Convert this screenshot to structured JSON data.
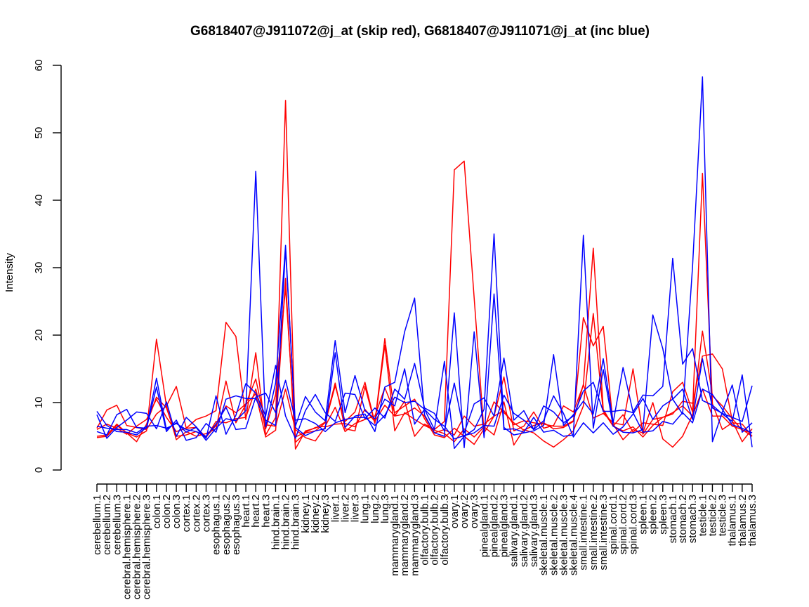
{
  "chart_data": {
    "type": "line",
    "title": "G6818407@J911072@j_at (skip red), G6818407@J911071@j_at (inc blue)",
    "xlabel": "",
    "ylabel": "Intensity",
    "ylim": [
      0,
      60
    ],
    "yticks": [
      0,
      10,
      20,
      30,
      40,
      50,
      60
    ],
    "grid": false,
    "legend": "none",
    "categories": [
      "cerebellum.1",
      "cerebellum.2",
      "cerebellum.3",
      "cerebral.hemisphere.1",
      "cerebral.hemisphere.2",
      "cerebral.hemisphere.3",
      "colon.1",
      "colon.2",
      "colon.3",
      "cortex.1",
      "cortex.2",
      "cortex.3",
      "esophagus.1",
      "esophagus.2",
      "esophagus.3",
      "heart.1",
      "heart.2",
      "heart.3",
      "hind.brain.1",
      "hind.brain.2",
      "hind.brain.3",
      "kidney.1",
      "kidney.2",
      "kidney.3",
      "liver.1",
      "liver.2",
      "liver.3",
      "lung.1",
      "lung.2",
      "lung.3",
      "mammarygland.1",
      "mammarygland.2",
      "mammarygland.3",
      "olfactory.bulb.1",
      "olfactory.bulb.2",
      "olfactory.bulb.3",
      "ovary.1",
      "ovary.2",
      "ovary.3",
      "pinealgland.1",
      "pinealgland.2",
      "pinealgland.3",
      "salivary.gland.1",
      "salivary.gland.2",
      "salivary.gland.3",
      "skeletal.muscle.1",
      "skeletal.muscle.2",
      "skeletal.muscle.3",
      "skeletal.muscle.4",
      "small.intestine.1",
      "small.intestine.2",
      "small.intestine.3",
      "spinal.cord.1",
      "spinal.cord.2",
      "spinal.cord.3",
      "spleen.1",
      "spleen.2",
      "spleen.3",
      "stomach.1",
      "stomach.2",
      "stomach.3",
      "testicle.1",
      "testicle.2",
      "testicle.3",
      "thalamus.1",
      "thalamus.2",
      "thalamus.3"
    ],
    "colors": {
      "skip": "#ff0000",
      "inc": "#0000ff"
    },
    "series": [
      {
        "color": "#ff0000",
        "values": [
          5.0,
          5.2,
          6.8,
          5.5,
          4.9,
          5.8,
          19.4,
          9.5,
          12.4,
          6.2,
          7.5,
          8.0,
          8.8,
          21.9,
          19.8,
          7.5,
          17.4,
          5.2,
          7.8,
          54.8,
          4.1,
          5.5,
          5.8,
          7.0,
          12.5,
          7.2,
          8.6,
          13.0,
          7.0,
          19.5,
          8.0,
          10.2,
          5.0,
          6.8,
          6.0,
          7.2,
          44.5,
          45.8,
          25.5,
          5.5,
          8.0,
          13.8,
          5.8,
          6.5,
          8.6,
          6.2,
          6.6,
          9.5,
          8.6,
          12.6,
          32.9,
          9.0,
          6.5,
          8.2,
          5.6,
          7.0,
          6.8,
          6.6,
          11.6,
          13.0,
          8.6,
          44.0,
          9.8,
          6.0,
          7.0,
          6.8,
          5.0
        ]
      },
      {
        "color": "#ff0000",
        "values": [
          6.2,
          8.9,
          9.6,
          6.6,
          6.3,
          6.0,
          8.3,
          9.5,
          4.5,
          5.7,
          5.0,
          5.4,
          6.1,
          13.2,
          7.0,
          9.7,
          11.3,
          4.9,
          5.9,
          28.4,
          3.1,
          5.8,
          6.2,
          7.1,
          12.9,
          6.1,
          5.8,
          12.4,
          6.9,
          18.5,
          5.8,
          8.5,
          7.5,
          6.6,
          5.9,
          5.4,
          4.2,
          6.1,
          4.9,
          6.4,
          5.2,
          10.1,
          3.7,
          6.0,
          5.5,
          4.3,
          3.4,
          4.5,
          5.8,
          9.5,
          23.2,
          8.7,
          6.5,
          5.8,
          6.4,
          4.9,
          6.6,
          7.8,
          8.3,
          10.2,
          9.9,
          16.9,
          17.2,
          15.0,
          7.3,
          4.2,
          6.1
        ]
      },
      {
        "color": "#ff0000",
        "values": [
          4.8,
          5.0,
          6.6,
          5.5,
          4.2,
          6.8,
          10.8,
          9.2,
          5.0,
          5.2,
          5.7,
          4.8,
          7.2,
          7.0,
          7.6,
          7.8,
          12.0,
          6.1,
          11.2,
          27.0,
          4.9,
          5.6,
          6.3,
          6.5,
          9.3,
          5.7,
          6.9,
          7.5,
          8.0,
          12.2,
          8.5,
          9.5,
          10.5,
          7.6,
          5.2,
          4.8,
          6.2,
          5.0,
          3.8,
          6.1,
          10.1,
          8.5,
          7.0,
          5.9,
          6.6,
          7.0,
          6.1,
          6.3,
          7.2,
          22.6,
          18.4,
          21.3,
          6.8,
          4.5,
          6.0,
          5.5,
          10.0,
          4.6,
          3.4,
          5.0,
          8.2,
          20.6,
          11.0,
          9.5,
          7.6,
          5.9,
          5.5
        ]
      },
      {
        "color": "#ff0000",
        "values": [
          6.0,
          6.8,
          6.2,
          5.3,
          6.5,
          7.5,
          10.5,
          7.8,
          5.7,
          6.2,
          6.3,
          4.9,
          6.6,
          9.5,
          8.5,
          9.8,
          13.5,
          6.7,
          6.5,
          12.0,
          6.0,
          4.8,
          4.3,
          6.4,
          6.8,
          6.9,
          6.4,
          9.0,
          7.2,
          9.6,
          8.0,
          8.3,
          9.2,
          8.0,
          5.5,
          6.0,
          5.2,
          8.0,
          6.5,
          6.8,
          8.0,
          8.8,
          6.7,
          7.3,
          7.0,
          6.8,
          6.5,
          6.5,
          7.3,
          12.7,
          7.7,
          8.4,
          7.0,
          6.7,
          15.0,
          5.3,
          7.5,
          7.8,
          8.5,
          9.5,
          8.0,
          12.0,
          8.0,
          8.0,
          6.5,
          6.0,
          5.0
        ]
      },
      {
        "color": "#0000ff",
        "values": [
          8.7,
          6.6,
          5.7,
          5.6,
          5.2,
          6.3,
          13.6,
          6.0,
          7.0,
          5.6,
          6.3,
          4.4,
          6.2,
          7.6,
          7.3,
          8.8,
          44.3,
          6.4,
          12.9,
          33.3,
          6.3,
          5.1,
          5.8,
          6.1,
          17.4,
          6.3,
          8.0,
          8.3,
          5.7,
          12.3,
          13.0,
          20.5,
          25.5,
          8.2,
          5.5,
          5.0,
          23.3,
          3.3,
          20.5,
          4.8,
          26.1,
          6.0,
          6.1,
          5.6,
          7.8,
          5.6,
          5.9,
          5.0,
          5.2,
          34.8,
          6.2,
          14.9,
          6.5,
          5.6,
          5.5,
          6.0,
          23.0,
          18.0,
          10.5,
          8.3,
          30.2,
          58.3,
          4.2,
          8.6,
          12.6,
          5.6,
          7.0
        ]
      },
      {
        "color": "#0000ff",
        "values": [
          5.7,
          5.2,
          8.2,
          9.0,
          6.3,
          6.2,
          12.3,
          5.7,
          7.4,
          4.4,
          4.8,
          6.9,
          5.6,
          10.5,
          11.0,
          10.6,
          10.6,
          7.4,
          6.6,
          32.8,
          6.5,
          10.9,
          8.6,
          7.3,
          19.2,
          8.5,
          14.0,
          8.8,
          7.6,
          10.5,
          9.5,
          15.0,
          6.8,
          9.0,
          6.0,
          16.1,
          3.2,
          5.0,
          6.0,
          9.0,
          35.0,
          6.3,
          5.2,
          5.5,
          5.8,
          6.6,
          17.1,
          6.6,
          8.2,
          10.2,
          8.3,
          16.5,
          7.0,
          15.2,
          8.6,
          11.1,
          11.0,
          12.4,
          31.4,
          15.7,
          18.0,
          10.3,
          9.6,
          8.3,
          7.2,
          14.1,
          3.4
        ]
      },
      {
        "color": "#0000ff",
        "values": [
          8.2,
          4.7,
          6.3,
          7.4,
          8.6,
          8.4,
          6.1,
          10.1,
          5.0,
          7.8,
          6.4,
          4.7,
          11.0,
          5.3,
          8.1,
          12.8,
          11.4,
          8.0,
          15.5,
          8.0,
          4.7,
          8.8,
          11.2,
          8.5,
          7.2,
          11.4,
          11.2,
          7.6,
          9.2,
          7.7,
          12.0,
          10.5,
          15.8,
          9.2,
          8.4,
          5.8,
          12.9,
          5.5,
          9.8,
          10.7,
          8.0,
          16.6,
          7.4,
          8.8,
          6.0,
          7.3,
          11.0,
          8.4,
          4.9,
          7.0,
          5.5,
          7.0,
          5.3,
          6.4,
          8.3,
          10.6,
          7.5,
          9.5,
          10.5,
          12.0,
          7.5,
          16.5,
          9.2,
          8.4,
          7.8,
          7.2,
          12.5
        ]
      },
      {
        "color": "#0000ff",
        "values": [
          6.5,
          6.2,
          6.0,
          6.0,
          5.5,
          6.5,
          6.6,
          6.2,
          6.9,
          6.0,
          5.7,
          5.0,
          6.8,
          9.3,
          6.0,
          6.2,
          10.8,
          11.4,
          8.5,
          13.3,
          7.4,
          7.6,
          6.9,
          5.7,
          7.0,
          7.5,
          7.8,
          7.8,
          6.6,
          8.1,
          10.8,
          10.0,
          10.2,
          9.0,
          7.5,
          6.5,
          4.6,
          5.1,
          5.5,
          6.6,
          6.5,
          11.1,
          8.4,
          7.4,
          6.0,
          9.5,
          8.6,
          7.0,
          8.0,
          11.7,
          13.0,
          8.7,
          8.7,
          8.9,
          8.5,
          5.6,
          5.8,
          7.2,
          6.8,
          8.5,
          7.0,
          12.0,
          11.2,
          9.0,
          6.7,
          6.2,
          5.5
        ]
      }
    ]
  }
}
